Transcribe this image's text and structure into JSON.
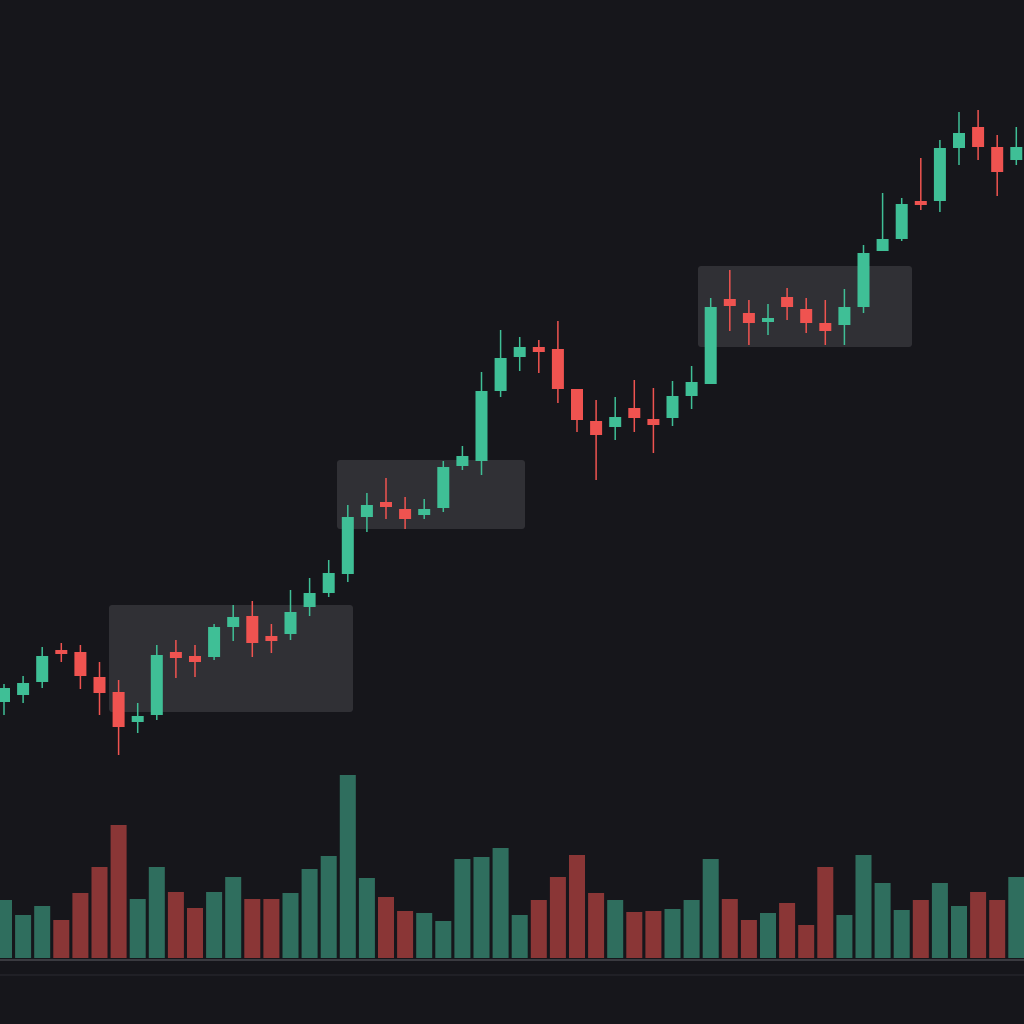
{
  "chart_data": {
    "type": "candlestick",
    "open": [
      322,
      329,
      342,
      374,
      372,
      347,
      332,
      302,
      309,
      372,
      368,
      367,
      397,
      408,
      388,
      390,
      417,
      431,
      450,
      507,
      522,
      515,
      509,
      516,
      558,
      563,
      633,
      667,
      677,
      675,
      635,
      603,
      597,
      616,
      605,
      606,
      628,
      640,
      725,
      711,
      702,
      727,
      715,
      701,
      699,
      717,
      773,
      785,
      823,
      823,
      876,
      897,
      877,
      864
    ],
    "high": [
      340,
      348,
      377,
      381,
      379,
      362,
      344,
      321,
      379,
      384,
      379,
      400,
      419,
      423,
      400,
      434,
      446,
      464,
      519,
      531,
      546,
      527,
      525,
      563,
      578,
      652,
      694,
      687,
      684,
      703,
      635,
      624,
      627,
      644,
      636,
      643,
      658,
      726,
      754,
      724,
      720,
      736,
      726,
      724,
      735,
      779,
      831,
      826,
      866,
      884,
      912,
      914,
      889,
      897
    ],
    "low": [
      309,
      321,
      336,
      362,
      335,
      309,
      269,
      291,
      304,
      346,
      347,
      364,
      383,
      367,
      371,
      384,
      408,
      427,
      442,
      492,
      505,
      495,
      505,
      512,
      554,
      549,
      627,
      653,
      651,
      621,
      592,
      544,
      584,
      592,
      571,
      598,
      615,
      640,
      693,
      679,
      689,
      704,
      691,
      679,
      679,
      711,
      773,
      783,
      814,
      812,
      859,
      864,
      828,
      859
    ],
    "close": [
      336,
      341,
      368,
      370,
      348,
      331,
      297,
      308,
      369,
      366,
      362,
      397,
      407,
      381,
      383,
      412,
      431,
      451,
      507,
      519,
      517,
      505,
      515,
      557,
      568,
      633,
      666,
      677,
      672,
      635,
      604,
      589,
      607,
      606,
      599,
      628,
      642,
      717,
      718,
      701,
      706,
      717,
      701,
      693,
      717,
      771,
      785,
      820,
      819,
      876,
      891,
      877,
      852,
      877
    ],
    "volume": [
      58,
      43,
      52,
      38,
      65,
      91,
      133,
      59,
      91,
      66,
      50,
      66,
      81,
      59,
      59,
      65,
      89,
      102,
      183,
      80,
      61,
      47,
      45,
      37,
      99,
      101,
      110,
      43,
      58,
      81,
      103,
      65,
      58,
      46,
      47,
      49,
      58,
      99,
      59,
      38,
      45,
      55,
      33,
      91,
      43,
      103,
      75,
      48,
      58,
      75,
      52,
      66,
      58,
      81
    ],
    "ylim": [
      0,
      1024
    ],
    "volume_lim": [
      0,
      200
    ],
    "up_color": "#3fbf96",
    "down_color": "#ef5350",
    "volume_up_color": "#2f6e5e",
    "volume_down_color": "#8a3636"
  }
}
